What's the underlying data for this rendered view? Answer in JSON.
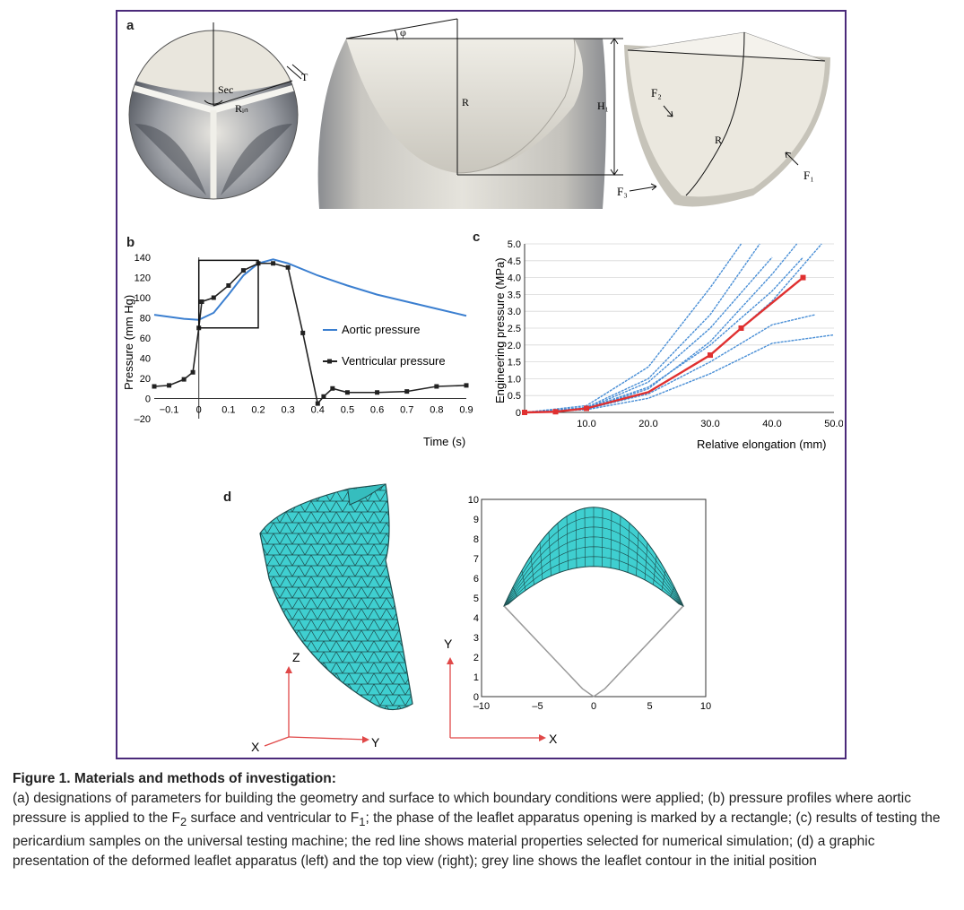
{
  "panels": {
    "a": {
      "label": "a",
      "annotations": {
        "sec": "Sec",
        "t": "T",
        "rm": "Rᵢₙ",
        "r_mid": "R",
        "h1": "H₁",
        "phi": "φ",
        "f2": "F₂",
        "f1": "F₁",
        "f3": "F₃",
        "r_right": "R"
      }
    },
    "b": {
      "label": "b",
      "legend": {
        "aortic": "Aortic pressure",
        "ventricular": "Ventricular pressure"
      },
      "colors": {
        "aortic": "#3b7fd0",
        "ventricular": "#222222"
      }
    },
    "c": {
      "label": "c",
      "colors": {
        "samples": "#4a8fd6",
        "selected": "#e03030"
      }
    },
    "d": {
      "label": "d",
      "axes_left": {
        "z": "Z",
        "x": "X",
        "y": "Y"
      },
      "axes_right": {
        "y": "Y",
        "x": "X"
      },
      "colors": {
        "mesh": "#3fcfd0",
        "contour": "#9a9a9a"
      }
    }
  },
  "chart_data": [
    {
      "type": "line",
      "panel": "b",
      "xlabel": "Time (s)",
      "ylabel": "Pressure (mm Hg)",
      "xlim": [
        -0.15,
        0.9
      ],
      "ylim": [
        -20,
        140
      ],
      "xticks": [
        "-0.1",
        "0",
        "0.1",
        "0.2",
        "0.3",
        "0.4",
        "0.5",
        "0.6",
        "0.7",
        "0.8",
        "0.9"
      ],
      "yticks": [
        "–20",
        "0",
        "20",
        "40",
        "60",
        "80",
        "100",
        "120",
        "140"
      ],
      "series": [
        {
          "name": "Aortic pressure",
          "x": [
            -0.15,
            -0.05,
            0,
            0.05,
            0.1,
            0.15,
            0.2,
            0.25,
            0.3,
            0.4,
            0.5,
            0.6,
            0.7,
            0.8,
            0.9
          ],
          "y": [
            83,
            79,
            78,
            85,
            103,
            122,
            134,
            138,
            134,
            122,
            112,
            103,
            96,
            89,
            82
          ]
        },
        {
          "name": "Ventricular pressure",
          "x": [
            -0.15,
            -0.1,
            -0.05,
            -0.02,
            0,
            0.01,
            0.05,
            0.1,
            0.15,
            0.2,
            0.25,
            0.3,
            0.35,
            0.4,
            0.42,
            0.45,
            0.5,
            0.6,
            0.7,
            0.8,
            0.9
          ],
          "y": [
            12,
            13,
            19,
            26,
            70,
            96,
            100,
            112,
            127,
            134,
            134,
            130,
            65,
            -5,
            2,
            10,
            6,
            6,
            7,
            12,
            13
          ]
        }
      ],
      "box": {
        "x0": 0,
        "x1": 0.2,
        "y0": 70,
        "y1": 137
      }
    },
    {
      "type": "line",
      "panel": "c",
      "xlabel": "Relative elongation (mm)",
      "ylabel": "Engineering pressure (MPa)",
      "xlim": [
        0,
        50
      ],
      "ylim": [
        0,
        5
      ],
      "xticks": [
        "10.0",
        "20.0",
        "30.0",
        "40.0",
        "50.0"
      ],
      "yticks": [
        "0",
        "0.5",
        "1.0",
        "1.5",
        "2.0",
        "2.5",
        "3.0",
        "3.5",
        "4.0",
        "4.5",
        "5.0"
      ],
      "samples": [
        {
          "x": [
            0,
            10,
            20,
            30,
            40,
            50
          ],
          "y": [
            0,
            0.08,
            0.42,
            1.15,
            2.05,
            2.3
          ]
        },
        {
          "x": [
            0,
            10,
            20,
            30,
            40,
            47
          ],
          "y": [
            0,
            0.1,
            0.55,
            1.5,
            2.6,
            2.9
          ]
        },
        {
          "x": [
            0,
            10,
            20,
            30,
            40,
            45
          ],
          "y": [
            0,
            0.12,
            0.75,
            2.0,
            3.6,
            4.6
          ]
        },
        {
          "x": [
            0,
            10,
            20,
            30,
            40,
            44
          ],
          "y": [
            0,
            0.1,
            0.7,
            2.1,
            4.1,
            5.0
          ]
        },
        {
          "x": [
            0,
            10,
            20,
            30,
            38
          ],
          "y": [
            0,
            0.15,
            1.0,
            2.9,
            5.0
          ]
        },
        {
          "x": [
            0,
            10,
            20,
            30,
            35
          ],
          "y": [
            0,
            0.2,
            1.35,
            3.7,
            5.0
          ]
        },
        {
          "x": [
            0,
            10,
            20,
            30,
            40,
            48
          ],
          "y": [
            0,
            0.09,
            0.6,
            1.7,
            3.3,
            5.0
          ]
        },
        {
          "x": [
            0,
            10,
            20,
            30,
            40
          ],
          "y": [
            0,
            0.12,
            0.9,
            2.5,
            4.6
          ]
        }
      ],
      "selected": {
        "name": "",
        "x": [
          0,
          5,
          10,
          20,
          30,
          35,
          45
        ],
        "y": [
          0,
          0.02,
          0.12,
          0.6,
          1.7,
          2.5,
          4.0
        ]
      }
    },
    {
      "type": "scatter",
      "panel": "d",
      "xlim": [
        -10,
        10
      ],
      "ylim": [
        0,
        10
      ],
      "xticks": [
        "–10",
        "–5",
        "0",
        "5",
        "10"
      ],
      "yticks": [
        "0",
        "1",
        "2",
        "3",
        "4",
        "5",
        "6",
        "7",
        "8",
        "9",
        "10"
      ]
    }
  ],
  "caption": {
    "title": "Figure 1. Materials and methods of investigation:",
    "body_1": "(a) designations of parameters for building the geometry and surface to which boundary conditions were applied; (b) pressure profiles where aortic pressure is applied to the F",
    "sub_1": "2",
    "body_2": " surface and ventricular to F",
    "sub_2": "1",
    "body_3": "; the phase of the leaflet apparatus opening is marked by a rectangle; (c) results of testing the pericardium samples on the universal testing machine; the red line shows material properties selected for numerical simulation; (d) a graphic presentation of the deformed leaflet apparatus (left) and the top view (right); grey line shows the leaflet contour in the initial position"
  }
}
